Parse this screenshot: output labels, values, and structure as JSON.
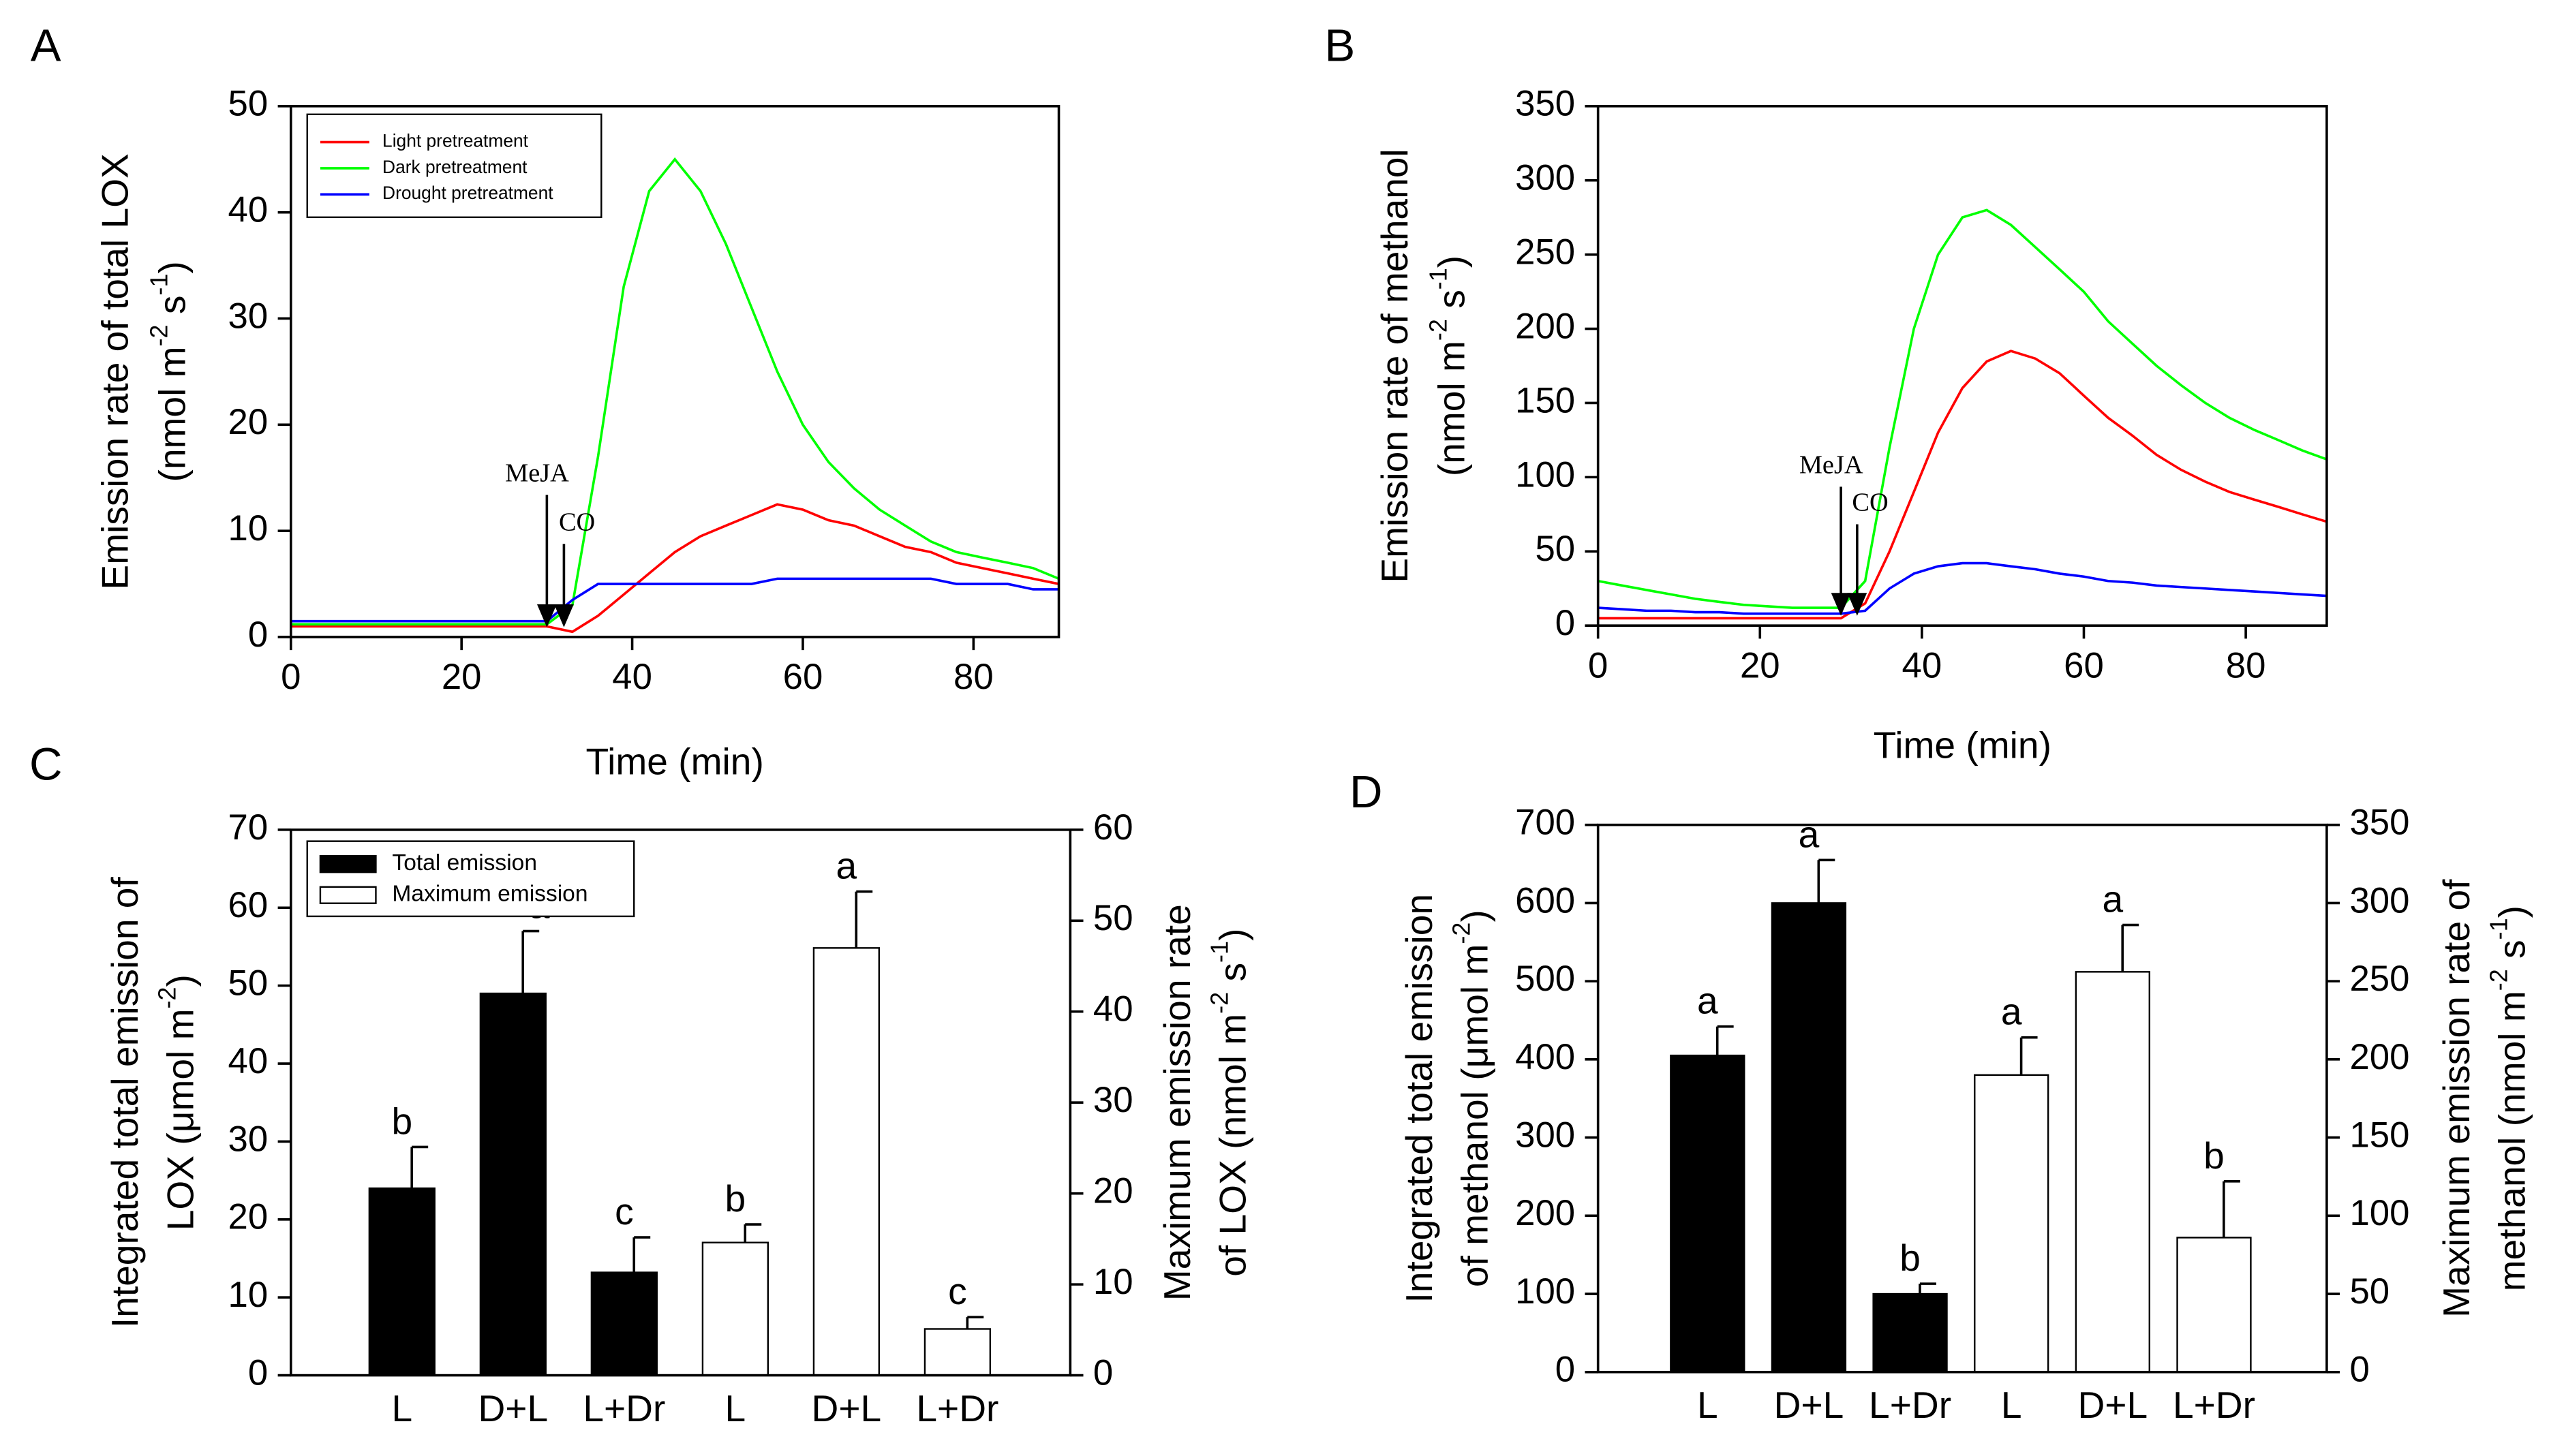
{
  "chart_data": [
    {
      "type": "line",
      "panel": "A",
      "xlabel": "Time (min)",
      "ylabel": [
        [
          "Emission rate of total LOX"
        ],
        [
          "(nmol m",
          "-2",
          " s",
          "-1",
          ")"
        ]
      ],
      "x": [
        0,
        3,
        6,
        9,
        12,
        15,
        18,
        21,
        24,
        27,
        30,
        33,
        36,
        39,
        42,
        45,
        48,
        51,
        54,
        57,
        60,
        63,
        66,
        69,
        72,
        75,
        78,
        81,
        84,
        87,
        90
      ],
      "series": [
        {
          "name": "Light pretreatment",
          "color": "#ff0000",
          "values": [
            1,
            1,
            1,
            1,
            1,
            1,
            1,
            1,
            1,
            1,
            1,
            0.5,
            2,
            4,
            6,
            8,
            9.5,
            10.5,
            11.5,
            12.5,
            12,
            11,
            10.5,
            9.5,
            8.5,
            8,
            7,
            6.5,
            6,
            5.5,
            5
          ]
        },
        {
          "name": "Dark pretreatment",
          "color": "#00ff00",
          "values": [
            1.2,
            1.2,
            1.2,
            1.2,
            1.2,
            1.2,
            1.2,
            1.2,
            1.2,
            1.2,
            1.2,
            3,
            17,
            33,
            42,
            45,
            42,
            37,
            31,
            25,
            20,
            16.5,
            14,
            12,
            10.5,
            9,
            8,
            7.5,
            7,
            6.5,
            5.5
          ]
        },
        {
          "name": "Drought pretreatment",
          "color": "#0000ff",
          "values": [
            1.5,
            1.5,
            1.5,
            1.5,
            1.5,
            1.5,
            1.5,
            1.5,
            1.5,
            1.5,
            1.5,
            3.5,
            5,
            5,
            5,
            5,
            5,
            5,
            5,
            5.5,
            5.5,
            5.5,
            5.5,
            5.5,
            5.5,
            5.5,
            5,
            5,
            5,
            4.5,
            4.5
          ]
        }
      ],
      "annotations": [
        {
          "text": "MeJA",
          "x": 30
        },
        {
          "text": "CO",
          "x": 32
        }
      ],
      "xlim": [
        0,
        90
      ],
      "xticks": [
        0,
        20,
        40,
        60,
        80
      ],
      "ylim": [
        0,
        50
      ],
      "yticks": [
        0,
        10,
        20,
        30,
        40,
        50
      ],
      "legend": "upper left"
    },
    {
      "type": "line",
      "panel": "B",
      "xlabel": "Time (min)",
      "ylabel": [
        [
          "Emission rate of methanol"
        ],
        [
          "(nmol m",
          "-2",
          " s",
          "-1",
          ")"
        ]
      ],
      "x": [
        0,
        3,
        6,
        9,
        12,
        15,
        18,
        21,
        24,
        27,
        30,
        33,
        36,
        39,
        42,
        45,
        48,
        51,
        54,
        57,
        60,
        63,
        66,
        69,
        72,
        75,
        78,
        81,
        84,
        87,
        90
      ],
      "series": [
        {
          "color": "#ff0000",
          "values": [
            5,
            5,
            5,
            5,
            5,
            5,
            5,
            5,
            5,
            5,
            5,
            15,
            50,
            90,
            130,
            160,
            178,
            185,
            180,
            170,
            155,
            140,
            128,
            115,
            105,
            97,
            90,
            85,
            80,
            75,
            70
          ]
        },
        {
          "color": "#00ff00",
          "values": [
            30,
            27,
            24,
            21,
            18,
            16,
            14,
            13,
            12,
            12,
            12,
            30,
            120,
            200,
            250,
            275,
            280,
            270,
            255,
            240,
            225,
            205,
            190,
            175,
            162,
            150,
            140,
            132,
            125,
            118,
            112
          ]
        },
        {
          "color": "#0000ff",
          "values": [
            12,
            11,
            10,
            10,
            9,
            9,
            8,
            8,
            8,
            8,
            8,
            10,
            25,
            35,
            40,
            42,
            42,
            40,
            38,
            35,
            33,
            30,
            29,
            27,
            26,
            25,
            24,
            23,
            22,
            21,
            20
          ]
        }
      ],
      "annotations": [
        {
          "text": "MeJA",
          "x": 30
        },
        {
          "text": "CO",
          "x": 32
        }
      ],
      "xlim": [
        0,
        90
      ],
      "xticks": [
        0,
        20,
        40,
        60,
        80
      ],
      "ylim": [
        0,
        350
      ],
      "yticks": [
        0,
        50,
        100,
        150,
        200,
        250,
        300,
        350
      ]
    },
    {
      "type": "bar",
      "panel": "C",
      "ylabel": [
        [
          "Integrated total emission of"
        ],
        [
          "LOX (",
          "μmol m",
          "-2",
          ")"
        ]
      ],
      "y2label": [
        [
          "Maximum emission rate"
        ],
        [
          "of LOX (nmol m",
          "-2",
          " s",
          "-1",
          ")"
        ]
      ],
      "categories": [
        "L",
        "D+L",
        "L+Dr",
        "L",
        "D+L",
        "L+Dr"
      ],
      "series": [
        {
          "name": "Total emission",
          "color": "#000000",
          "values": [
            24,
            49,
            13.2,
            null,
            null,
            null
          ],
          "errors": [
            5.3,
            8,
            4.5,
            null,
            null,
            null
          ],
          "letters": [
            "b",
            "a",
            "c",
            null,
            null,
            null
          ]
        },
        {
          "name": "Maximum emission",
          "color": "#ffffff",
          "axis": "y2",
          "values": [
            null,
            null,
            null,
            14.6,
            47,
            5.1
          ],
          "errors": [
            null,
            null,
            null,
            2,
            6.2,
            1.3
          ],
          "letters": [
            null,
            null,
            null,
            "b",
            "a",
            "c"
          ]
        }
      ],
      "ylim": [
        0,
        70
      ],
      "yticks": [
        0,
        10,
        20,
        30,
        40,
        50,
        60,
        70
      ],
      "y2lim": [
        0,
        60
      ],
      "y2ticks": [
        0,
        10,
        20,
        30,
        40,
        50,
        60
      ],
      "legend": "upper left"
    },
    {
      "type": "bar",
      "panel": "D",
      "ylabel": [
        [
          "Integrated total emission"
        ],
        [
          "of methanol (",
          "μmol m",
          "-2",
          ")"
        ]
      ],
      "y2label": [
        [
          "Maximum emission rate of"
        ],
        [
          "methanol (nmol m",
          "-2",
          " s",
          "-1",
          ")"
        ]
      ],
      "categories": [
        "L",
        "D+L",
        "L+Dr",
        "L",
        "D+L",
        "L+Dr"
      ],
      "series": [
        {
          "color": "#000000",
          "values": [
            405,
            600,
            100,
            null,
            null,
            null
          ],
          "errors": [
            37,
            55,
            13,
            null,
            null,
            null
          ],
          "letters": [
            "a",
            "a",
            "b",
            null,
            null,
            null
          ]
        },
        {
          "color": "#ffffff",
          "axis": "y2",
          "values": [
            null,
            null,
            null,
            190,
            256,
            86
          ],
          "errors": [
            null,
            null,
            null,
            24,
            30,
            36
          ],
          "letters": [
            null,
            null,
            null,
            "a",
            "a",
            "b"
          ]
        }
      ],
      "ylim": [
        0,
        700
      ],
      "yticks": [
        0,
        100,
        200,
        300,
        400,
        500,
        600,
        700
      ],
      "y2lim": [
        0,
        350
      ],
      "y2ticks": [
        0,
        50,
        100,
        150,
        200,
        250,
        300,
        350
      ]
    }
  ]
}
